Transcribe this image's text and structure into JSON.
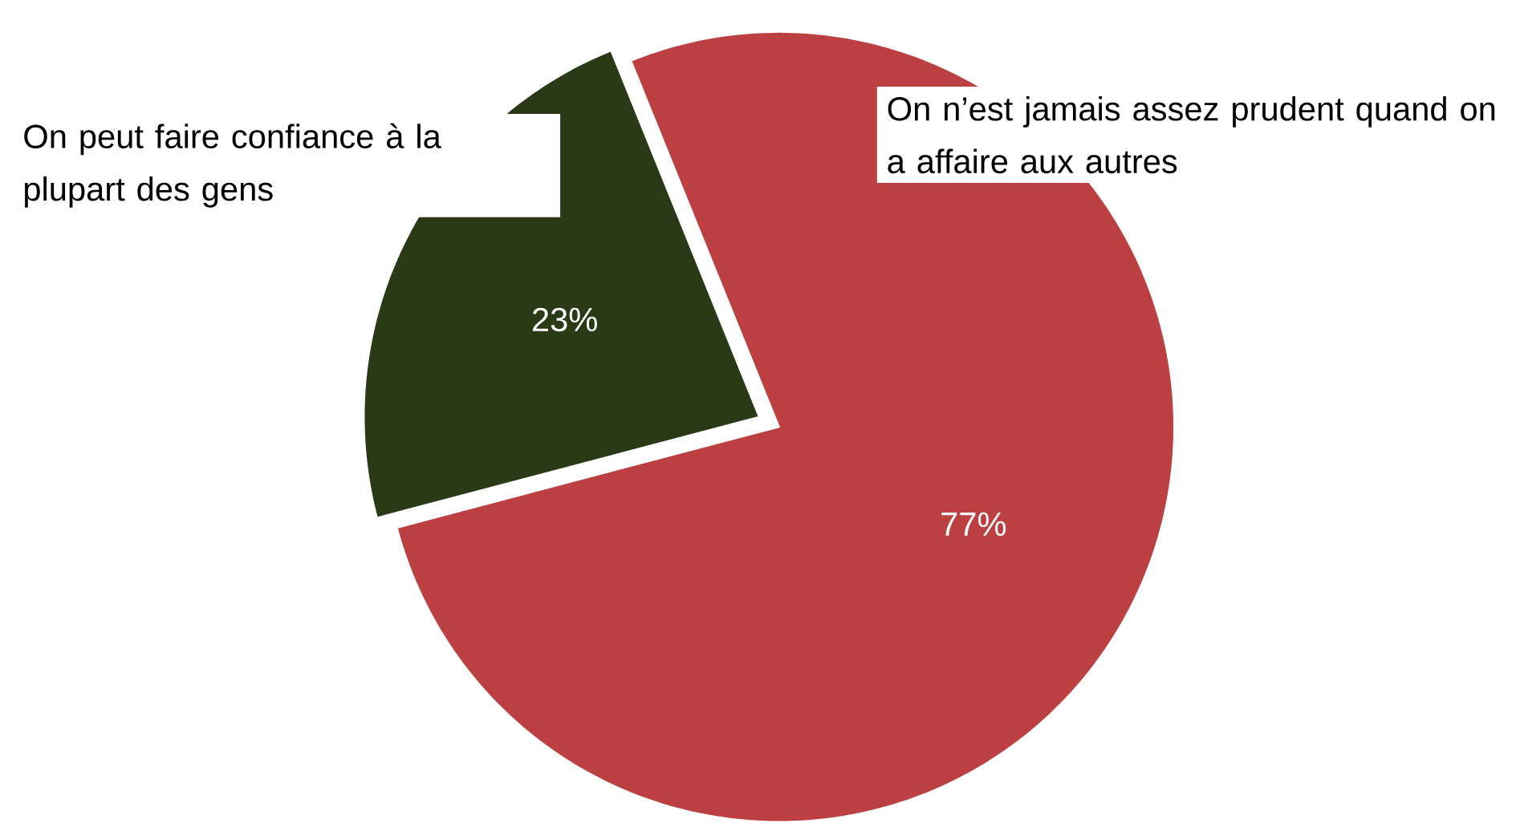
{
  "chart_data": {
    "type": "pie",
    "categories": [
      "On peut faire confiance à la plupart des gens",
      "On n’est jamais assez prudent quand on a affaire aux autres"
    ],
    "values": [
      23,
      77
    ],
    "colors": [
      "#2a3a17",
      "#bc3f41"
    ],
    "value_labels": [
      "23%",
      "77%"
    ],
    "legend": false
  }
}
